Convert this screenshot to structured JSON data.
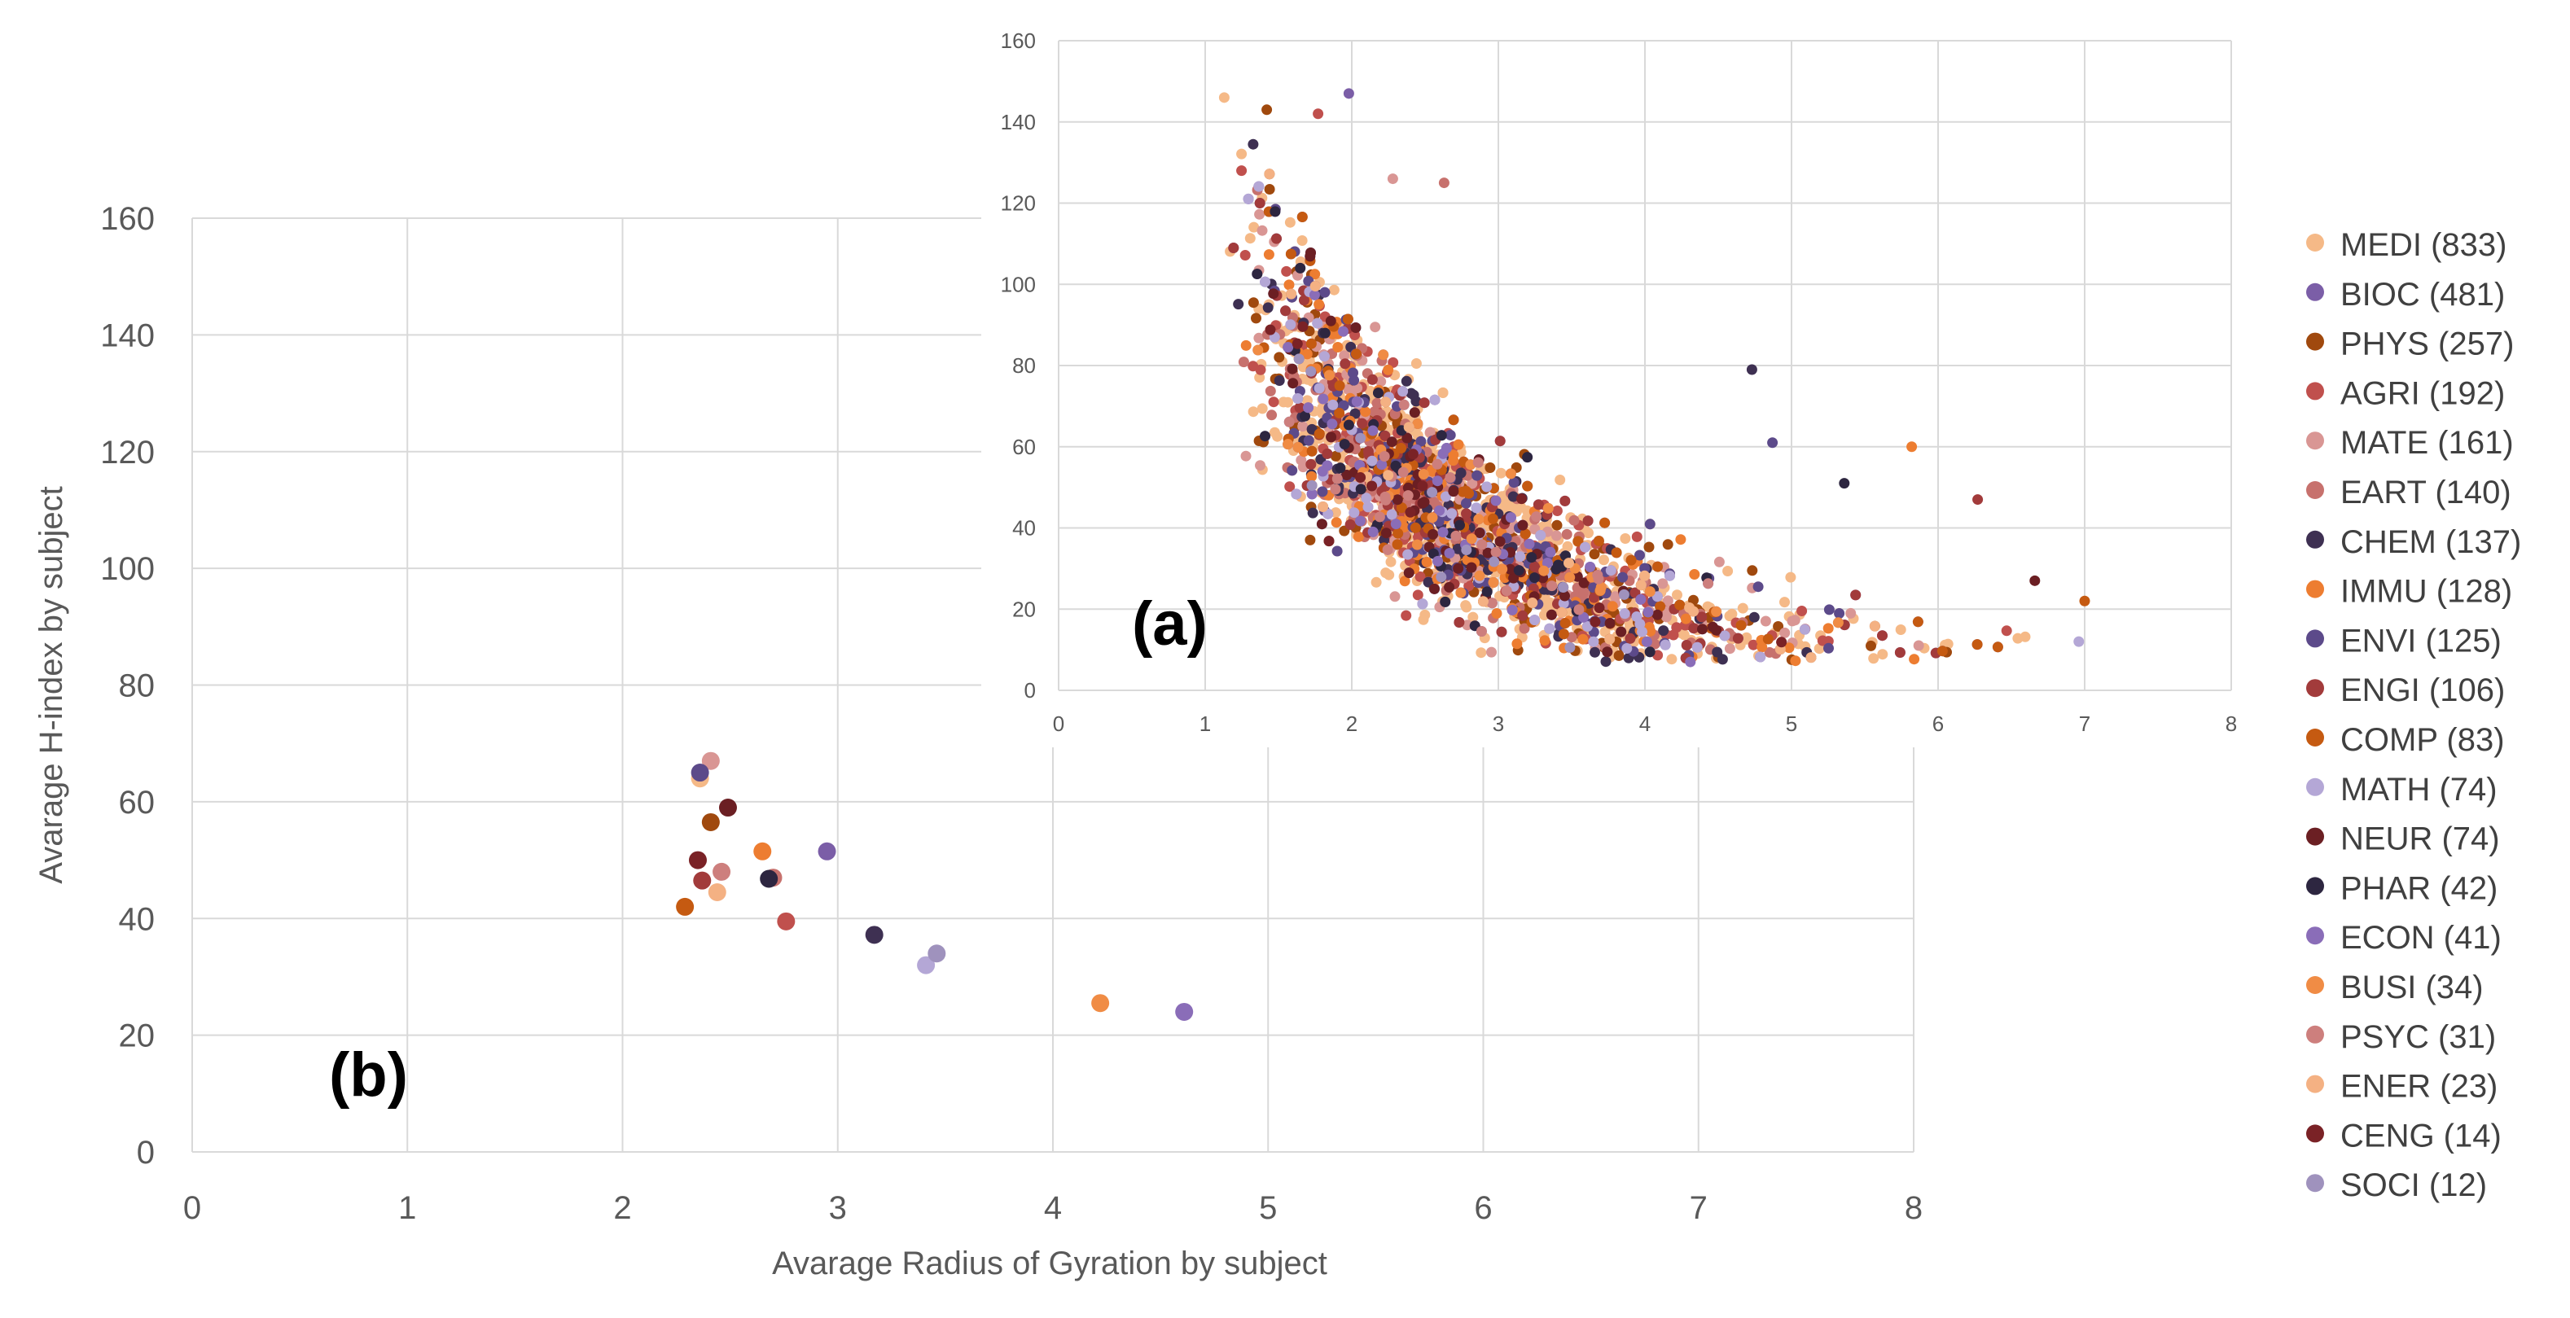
{
  "chart_data": [
    {
      "id": "b",
      "type": "scatter",
      "panel_label": "(b)",
      "xlabel": "Avarage Radius of Gyration by subject",
      "ylabel": "Avarage H-index by subject",
      "xlim": [
        0,
        8
      ],
      "ylim": [
        0,
        160
      ],
      "x_ticks": [
        0,
        1,
        2,
        3,
        4,
        5,
        6,
        7,
        8
      ],
      "y_ticks": [
        0,
        20,
        40,
        60,
        80,
        100,
        120,
        140,
        160
      ],
      "grid": true,
      "points": [
        {
          "subject": "MEDI",
          "x": 2.36,
          "y": 64
        },
        {
          "subject": "BIOC",
          "x": 2.95,
          "y": 51.5
        },
        {
          "subject": "PHYS",
          "x": 2.41,
          "y": 56.5
        },
        {
          "subject": "AGRI",
          "x": 2.76,
          "y": 39.5
        },
        {
          "subject": "MATE",
          "x": 2.41,
          "y": 67
        },
        {
          "subject": "EART",
          "x": 2.7,
          "y": 47
        },
        {
          "subject": "CHEM",
          "x": 3.17,
          "y": 37.2
        },
        {
          "subject": "IMMU",
          "x": 2.65,
          "y": 51.5
        },
        {
          "subject": "ENVI",
          "x": 2.36,
          "y": 65
        },
        {
          "subject": "ENGI",
          "x": 2.37,
          "y": 46.5
        },
        {
          "subject": "COMP",
          "x": 2.29,
          "y": 42
        },
        {
          "subject": "MATH",
          "x": 3.41,
          "y": 32
        },
        {
          "subject": "NEUR",
          "x": 2.49,
          "y": 59
        },
        {
          "subject": "PHAR",
          "x": 2.68,
          "y": 46.8
        },
        {
          "subject": "ECON",
          "x": 4.61,
          "y": 24
        },
        {
          "subject": "BUSI",
          "x": 4.22,
          "y": 25.5
        },
        {
          "subject": "PSYC",
          "x": 2.46,
          "y": 48
        },
        {
          "subject": "ENER",
          "x": 2.44,
          "y": 44.5
        },
        {
          "subject": "CENG",
          "x": 2.35,
          "y": 50
        },
        {
          "subject": "SOCI",
          "x": 3.46,
          "y": 34
        }
      ]
    },
    {
      "id": "a",
      "type": "scatter",
      "panel_label": "(a)",
      "xlim": [
        0,
        8
      ],
      "ylim": [
        0,
        160
      ],
      "x_ticks": [
        0,
        1,
        2,
        3,
        4,
        5,
        6,
        7,
        8
      ],
      "y_ticks": [
        0,
        20,
        40,
        60,
        80,
        100,
        120,
        140,
        160
      ],
      "grid": true,
      "description_note": "",
      "random_seed": 7,
      "points_per_subject": [
        833,
        481,
        257,
        192,
        161,
        140,
        137,
        128,
        125,
        106,
        83,
        74,
        74,
        42,
        41,
        34,
        31,
        23,
        14,
        12
      ],
      "notable_points": [
        {
          "x": 1.13,
          "y": 146
        },
        {
          "x": 1.98,
          "y": 147
        },
        {
          "x": 1.42,
          "y": 143
        },
        {
          "x": 1.77,
          "y": 142
        },
        {
          "x": 2.28,
          "y": 126
        },
        {
          "x": 2.63,
          "y": 125
        },
        {
          "x": 4.73,
          "y": 79
        },
        {
          "x": 5.82,
          "y": 60
        },
        {
          "x": 4.87,
          "y": 61
        },
        {
          "x": 6.27,
          "y": 47
        },
        {
          "x": 7.0,
          "y": 22
        },
        {
          "x": 6.96,
          "y": 12
        },
        {
          "x": 6.66,
          "y": 27
        },
        {
          "x": 5.36,
          "y": 51
        },
        {
          "x": 4.31,
          "y": 7
        }
      ]
    }
  ],
  "legend": {
    "placement": "right",
    "entries": [
      {
        "label": "MEDI (833)",
        "color": "#f5b987"
      },
      {
        "label": "BIOC (481)",
        "color": "#7b5ea7"
      },
      {
        "label": "PHYS (257)",
        "color": "#a0490e"
      },
      {
        "label": "AGRI (192)",
        "color": "#c0504d"
      },
      {
        "label": "MATE (161)",
        "color": "#d99694"
      },
      {
        "label": "EART (140)",
        "color": "#c7716d"
      },
      {
        "label": "CHEM (137)",
        "color": "#3e3052"
      },
      {
        "label": "IMMU (128)",
        "color": "#ed7d31"
      },
      {
        "label": "ENVI (125)",
        "color": "#5c4a8a"
      },
      {
        "label": "ENGI (106)",
        "color": "#a23b3b"
      },
      {
        "label": "COMP (83)",
        "color": "#c55a11"
      },
      {
        "label": "MATH (74)",
        "color": "#b4a7d6"
      },
      {
        "label": "NEUR (74)",
        "color": "#6b1f23"
      },
      {
        "label": "PHAR (42)",
        "color": "#2d2640"
      },
      {
        "label": "ECON (41)",
        "color": "#8a6db8"
      },
      {
        "label": "BUSI (34)",
        "color": "#f08c45"
      },
      {
        "label": "PSYC (31)",
        "color": "#cd7f7d"
      },
      {
        "label": "ENER (23)",
        "color": "#f4b183"
      },
      {
        "label": "CENG (14)",
        "color": "#7a2226"
      },
      {
        "label": "SOCI (12)",
        "color": "#9f92bd"
      }
    ]
  },
  "colors": {
    "grid": "#d9d9d9",
    "axis_text": "#595959",
    "legend_text": "#404040",
    "panel_label": "#000000",
    "background": "#ffffff"
  }
}
